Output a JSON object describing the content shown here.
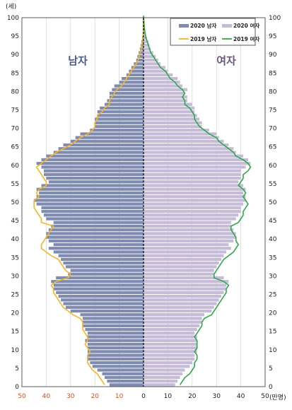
{
  "chart_data": {
    "type": "bar",
    "subtype": "population-pyramid",
    "y_unit_label": "(세)",
    "x_unit_label": "(만명)",
    "xlim": [
      -50,
      50
    ],
    "ylim": [
      0,
      100
    ],
    "x_ticks_left": [
      "50",
      "40",
      "30",
      "20",
      "10"
    ],
    "x_ticks_right": [
      "0",
      "10",
      "20",
      "30",
      "40",
      "50"
    ],
    "y_ticks": [
      "0",
      "5",
      "10",
      "15",
      "20",
      "25",
      "30",
      "35",
      "40",
      "45",
      "50",
      "55",
      "60",
      "65",
      "70",
      "75",
      "80",
      "85",
      "90",
      "95",
      "100"
    ],
    "side_labels": {
      "male": "남자",
      "female": "여자"
    },
    "legend": {
      "male_2020": "2020 남자",
      "female_2020": "2020 여자",
      "male_2019": "2019 남자",
      "female_2019": "2019 여자"
    },
    "colors": {
      "male_2020": "#7f8bb0",
      "female_2020": "#c6bcd8",
      "male_2019": "#f4b526",
      "female_2019": "#2fa84c",
      "male_label": "#4a5b8c",
      "female_label": "#6a577c",
      "center_line": "#000000",
      "grid": "#d4d4d4"
    },
    "ages": [
      0,
      1,
      2,
      3,
      4,
      5,
      6,
      7,
      8,
      9,
      10,
      11,
      12,
      13,
      14,
      15,
      16,
      17,
      18,
      19,
      20,
      21,
      22,
      23,
      24,
      25,
      26,
      27,
      28,
      29,
      30,
      31,
      32,
      33,
      34,
      35,
      36,
      37,
      38,
      39,
      40,
      41,
      42,
      43,
      44,
      45,
      46,
      47,
      48,
      49,
      50,
      51,
      52,
      53,
      54,
      55,
      56,
      57,
      58,
      59,
      60,
      61,
      62,
      63,
      64,
      65,
      66,
      67,
      68,
      69,
      70,
      71,
      72,
      73,
      74,
      75,
      76,
      77,
      78,
      79,
      80,
      81,
      82,
      83,
      84,
      85,
      86,
      87,
      88,
      89,
      90,
      91,
      92,
      93,
      94,
      95,
      96,
      97,
      98,
      99,
      100
    ],
    "series": [
      {
        "name": "2020 남자",
        "values": [
          14,
          15,
          16,
          17,
          19,
          21,
          22,
          23,
          23,
          23,
          23,
          23,
          24,
          23,
          23,
          24,
          25,
          25,
          25,
          26,
          30,
          32,
          33,
          34,
          35,
          36,
          37,
          37,
          38,
          36,
          31,
          30,
          32,
          33,
          34,
          35,
          37,
          39,
          37,
          39,
          40,
          40,
          39,
          38,
          37,
          40,
          41,
          42,
          42,
          44,
          45,
          44,
          43,
          44,
          42,
          39,
          40,
          41,
          41,
          42,
          44,
          42,
          40,
          37,
          35,
          33,
          30,
          28,
          26,
          22,
          20,
          20,
          20,
          19,
          19,
          18,
          16,
          15,
          14,
          14,
          13,
          12,
          10,
          9,
          7,
          6,
          5,
          4,
          3,
          2.5,
          2,
          1.5,
          1.2,
          0.9,
          0.6,
          0.4,
          0.3,
          0.2,
          0.1,
          0.1,
          0.05
        ]
      },
      {
        "name": "2020 여자",
        "values": [
          13,
          14,
          15,
          16,
          17,
          19,
          20,
          21,
          21,
          22,
          22,
          22,
          22,
          22,
          21,
          22,
          23,
          24,
          24,
          25,
          28,
          29,
          30,
          31,
          32,
          33,
          34,
          34,
          35,
          33,
          29,
          29,
          30,
          31,
          32,
          33,
          34,
          36,
          35,
          37,
          38,
          38,
          37,
          36,
          36,
          38,
          39,
          40,
          40,
          41,
          42,
          42,
          41,
          42,
          41,
          39,
          40,
          40,
          40,
          42,
          44,
          43,
          41,
          38,
          37,
          35,
          33,
          31,
          30,
          27,
          24,
          24,
          23,
          22,
          21,
          21,
          20,
          18,
          18,
          17,
          18,
          16,
          15,
          14,
          12,
          10,
          9,
          7,
          6,
          5,
          4,
          3,
          2.5,
          2,
          1.5,
          1,
          0.7,
          0.5,
          0.3,
          0.2,
          0.1
        ]
      },
      {
        "name": "2019 남자",
        "values": [
          16,
          17,
          18,
          19,
          21,
          22,
          23,
          23,
          23,
          22,
          23,
          24,
          23,
          23,
          24,
          25,
          25,
          25,
          26,
          29,
          31,
          33,
          34,
          35,
          36,
          37,
          37,
          38,
          36,
          31,
          30,
          32,
          33,
          34,
          35,
          38,
          40,
          42,
          42,
          41,
          40,
          39,
          38,
          37,
          42,
          42,
          43,
          44,
          45,
          45,
          45,
          43,
          44,
          43,
          40,
          40,
          41,
          42,
          43,
          44,
          42,
          40,
          38,
          36,
          33,
          30,
          28,
          26,
          23,
          21,
          20,
          20,
          19,
          19,
          17,
          16,
          14,
          14,
          13,
          12,
          11,
          9,
          8,
          7,
          6,
          5,
          4,
          3,
          2.2,
          1.8,
          1.3,
          1,
          0.8,
          0.5,
          0.3,
          0.2,
          0.1,
          0.1,
          0.05,
          0.05,
          0.02
        ]
      },
      {
        "name": "2019 여자",
        "values": [
          15,
          16,
          17,
          19,
          20,
          21,
          21,
          22,
          22,
          21,
          22,
          22,
          22,
          21,
          22,
          23,
          24,
          24,
          25,
          28,
          29,
          30,
          31,
          32,
          33,
          34,
          34,
          35,
          33,
          29,
          29,
          30,
          31,
          32,
          33,
          35,
          37,
          38,
          39,
          38,
          38,
          37,
          36,
          36,
          39,
          40,
          41,
          41,
          42,
          43,
          42,
          41,
          42,
          41,
          39,
          40,
          41,
          41,
          43,
          44,
          43,
          41,
          38,
          37,
          35,
          33,
          31,
          30,
          27,
          25,
          23,
          22,
          21,
          21,
          20,
          19,
          17,
          17,
          16,
          17,
          16,
          14,
          13,
          11,
          10,
          9,
          7,
          6,
          5,
          4,
          3,
          2.5,
          2,
          1.5,
          1,
          0.7,
          0.5,
          0.3,
          0.2,
          0.1,
          0.05
        ]
      }
    ]
  }
}
